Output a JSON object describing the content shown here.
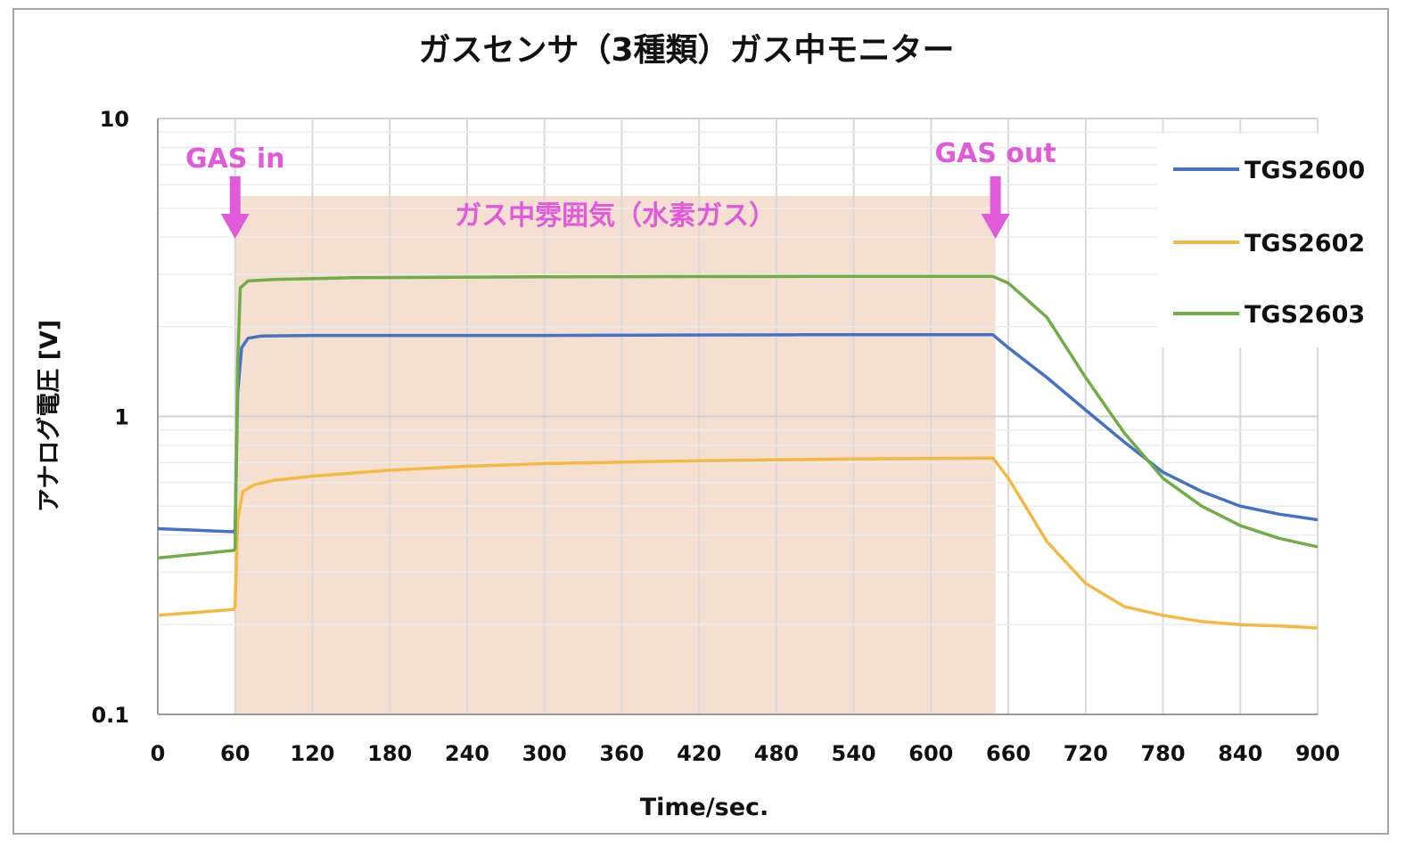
{
  "chart_data": {
    "type": "line",
    "title": "ガスセンサ（3種類）ガス中モニター",
    "xlabel": "Time/sec.",
    "ylabel": "アナログ電圧 [V]",
    "xlim": [
      0,
      900
    ],
    "ylim": [
      0.1,
      10
    ],
    "yscale": "log",
    "x_ticks": [
      "0",
      "60",
      "120",
      "180",
      "240",
      "300",
      "360",
      "420",
      "480",
      "540",
      "600",
      "660",
      "720",
      "780",
      "840",
      "900"
    ],
    "y_ticks": [
      {
        "value": 10,
        "label": "10"
      },
      {
        "value": 1,
        "label": "1"
      },
      {
        "value": 0.1,
        "label": "0.1"
      }
    ],
    "grid": true,
    "legend_position": "right",
    "series": [
      {
        "name": "TGS2600",
        "color": "#4472c4",
        "points": [
          [
            0,
            0.42
          ],
          [
            30,
            0.415
          ],
          [
            59,
            0.41
          ],
          [
            60,
            0.42
          ],
          [
            62,
            1.2
          ],
          [
            65,
            1.7
          ],
          [
            70,
            1.83
          ],
          [
            80,
            1.86
          ],
          [
            120,
            1.87
          ],
          [
            300,
            1.87
          ],
          [
            500,
            1.88
          ],
          [
            648,
            1.88
          ],
          [
            660,
            1.7
          ],
          [
            690,
            1.35
          ],
          [
            720,
            1.05
          ],
          [
            750,
            0.82
          ],
          [
            780,
            0.65
          ],
          [
            810,
            0.56
          ],
          [
            840,
            0.5
          ],
          [
            870,
            0.47
          ],
          [
            900,
            0.45
          ]
        ]
      },
      {
        "name": "TGS2602",
        "color": "#f4b942",
        "points": [
          [
            0,
            0.215
          ],
          [
            30,
            0.22
          ],
          [
            59,
            0.225
          ],
          [
            60,
            0.23
          ],
          [
            62,
            0.45
          ],
          [
            66,
            0.56
          ],
          [
            75,
            0.59
          ],
          [
            90,
            0.61
          ],
          [
            120,
            0.63
          ],
          [
            180,
            0.66
          ],
          [
            240,
            0.68
          ],
          [
            300,
            0.695
          ],
          [
            420,
            0.71
          ],
          [
            540,
            0.72
          ],
          [
            648,
            0.725
          ],
          [
            660,
            0.62
          ],
          [
            690,
            0.38
          ],
          [
            720,
            0.275
          ],
          [
            750,
            0.23
          ],
          [
            780,
            0.215
          ],
          [
            810,
            0.205
          ],
          [
            840,
            0.2
          ],
          [
            870,
            0.198
          ],
          [
            900,
            0.195
          ]
        ]
      },
      {
        "name": "TGS2603",
        "color": "#70ad47",
        "points": [
          [
            0,
            0.335
          ],
          [
            30,
            0.345
          ],
          [
            59,
            0.355
          ],
          [
            60,
            0.36
          ],
          [
            62,
            1.5
          ],
          [
            64,
            2.7
          ],
          [
            70,
            2.85
          ],
          [
            90,
            2.88
          ],
          [
            150,
            2.92
          ],
          [
            300,
            2.94
          ],
          [
            500,
            2.95
          ],
          [
            648,
            2.95
          ],
          [
            660,
            2.8
          ],
          [
            690,
            2.15
          ],
          [
            720,
            1.35
          ],
          [
            750,
            0.88
          ],
          [
            780,
            0.62
          ],
          [
            810,
            0.5
          ],
          [
            840,
            0.43
          ],
          [
            870,
            0.39
          ],
          [
            900,
            0.365
          ]
        ]
      }
    ],
    "annotations": [
      {
        "text": "GAS in",
        "x": 60,
        "color": "#e05ad9"
      },
      {
        "text": "GAS out",
        "x": 650,
        "color": "#e05ad9"
      },
      {
        "text": "ガス中雰囲気（水素ガス）",
        "x_range": [
          60,
          650
        ],
        "y_top": 5.5,
        "fill": "#f5dfd0"
      }
    ]
  }
}
